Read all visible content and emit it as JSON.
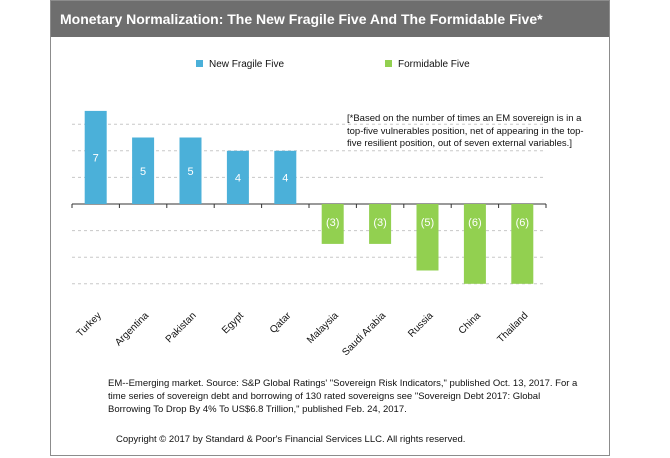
{
  "title": "Monetary Normalization: The New Fragile Five And The Formidable Five*",
  "footnote": "[*Based on the number of times an EM sovereign is in a top-five vulnerables position, net of appearing in the top-five resilient position, out of seven external variables.]",
  "source": "EM--Emerging market. Source: S&P Global Ratings' \"Sovereign Risk Indicators,\" published Oct. 13, 2017. For a time series of sovereign debt and borrowing of 130 rated sovereigns see \"Sovereign Debt 2017: Global Borrowing To Drop By 4% To US$6.8 Trillion,\" published Feb. 24, 2017.",
  "copyright": "Copyright © 2017 by Standard & Poor's Financial Services LLC. All rights reserved.",
  "colors": {
    "fragile": "#4bb0d9",
    "formidable": "#92d050",
    "title_bg": "#6e6e6e"
  },
  "chart_data": {
    "type": "bar",
    "categories": [
      "Turkey",
      "Argentina",
      "Pakistan",
      "Egypt",
      "Qatar",
      "Malaysia",
      "Saudi Arabia",
      "Russia",
      "China",
      "Thailand"
    ],
    "series": [
      {
        "name": "New Fragile Five",
        "values": [
          7,
          5,
          5,
          4,
          4,
          null,
          null,
          null,
          null,
          null
        ]
      },
      {
        "name": "Formidable Five",
        "values": [
          null,
          null,
          null,
          null,
          null,
          -3,
          -3,
          -5,
          -6,
          -6
        ]
      }
    ],
    "data_labels": [
      "7",
      "5",
      "5",
      "4",
      "4",
      "(3)",
      "(3)",
      "(5)",
      "(6)",
      "(6)"
    ],
    "ylim": [
      -8,
      8
    ],
    "grid": true,
    "legend_position": "top"
  }
}
